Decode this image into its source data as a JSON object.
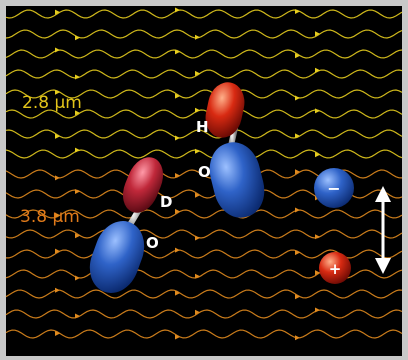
{
  "labels": {
    "wavelength_top": "2.8 μm",
    "wavelength_bottom": "3.8 μm",
    "atom_h": "H",
    "atom_o_upper": "O",
    "atom_d": "D",
    "atom_o_lower": "O",
    "ion_negative": "−",
    "ion_positive": "+"
  },
  "colors": {
    "background": "#000000",
    "frame": "#c8c8c8",
    "wave_yellow": "#e6cc1e",
    "wave_orange": "#e08a1e",
    "label_yellow": "#e3c51a",
    "label_orange": "#e07a1a",
    "oxygen_blue": "#2f63c8",
    "hydrogen_red": "#d82a12",
    "deuterium_red": "#c0283a",
    "ion_negative_blue": "#2f63c8",
    "ion_positive_red": "#d8300f",
    "arrow_white": "#ffffff"
  },
  "icons": {
    "double_arrow": "vertical-double-arrow-icon"
  }
}
